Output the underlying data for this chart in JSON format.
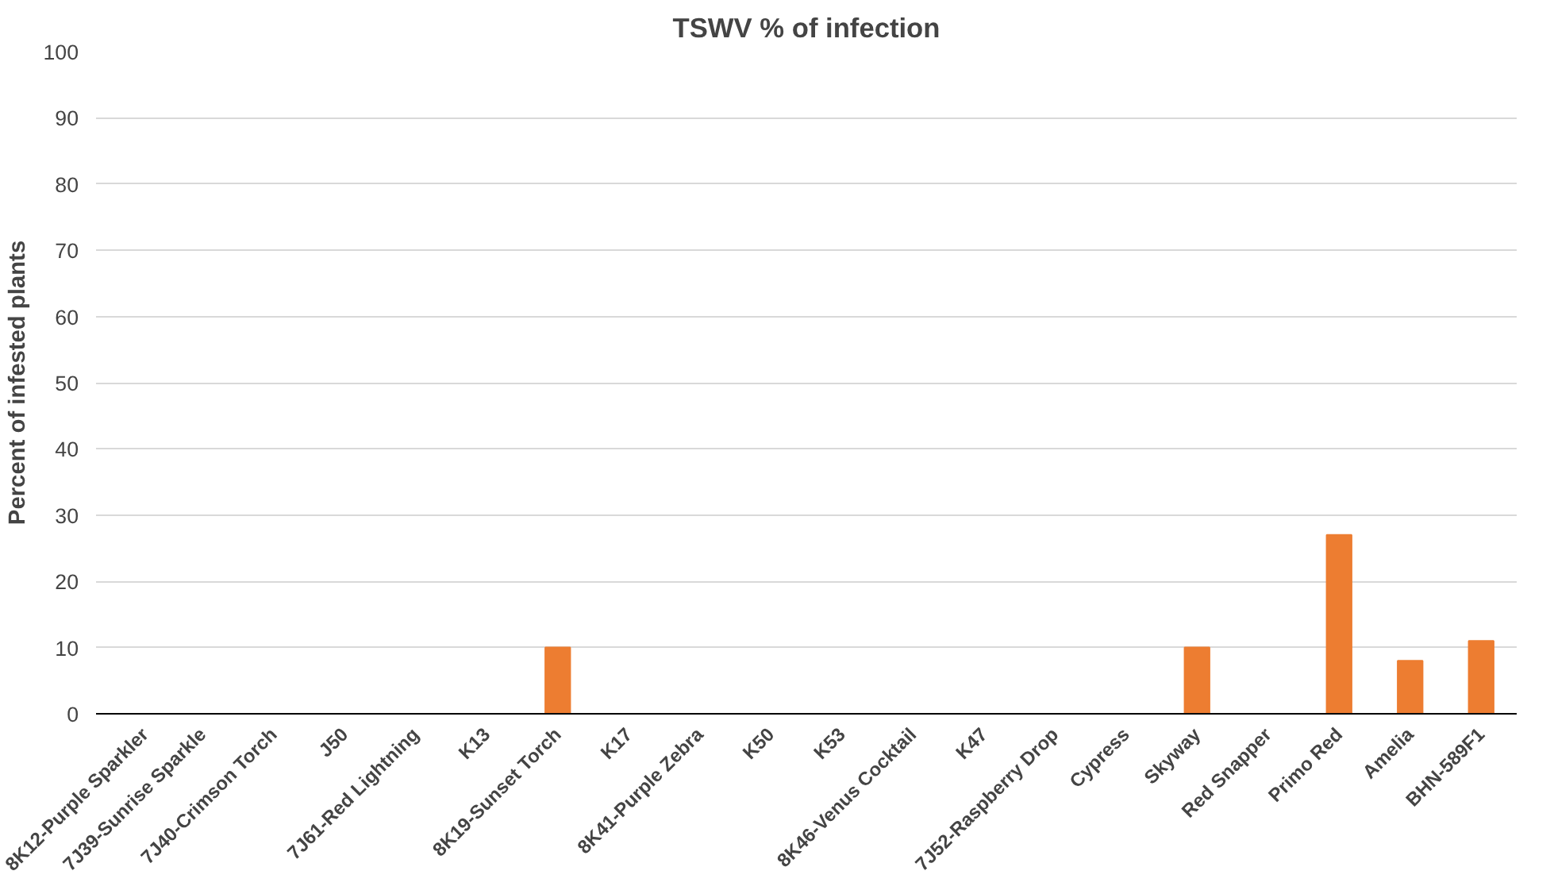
{
  "chart_data": {
    "type": "bar",
    "title": "TSWV % of infection",
    "ylabel": "Percent of infested plants",
    "categories": [
      "8K12-Purple Sparkler",
      "7J39-Sunrise Sparkle",
      "7J40-Crimson Torch",
      "J50",
      "7J61-Red Lightning",
      "K13",
      "8K19-Sunset Torch",
      "K17",
      "8K41-Purple Zebra",
      "K50",
      "K53",
      "8K46-Venus Cocktail",
      "K47",
      "7J52-Raspberry Drop",
      "Cypress",
      "Skyway",
      "Red Snapper",
      "Primo Red",
      "Amelia",
      "BHN-589F1"
    ],
    "values": [
      0,
      0,
      0,
      0,
      0,
      0,
      10,
      0,
      0,
      0,
      0,
      0,
      0,
      0,
      0,
      10,
      0,
      27,
      8,
      11
    ],
    "color": "#ed7d31",
    "ylim": [
      0,
      100
    ],
    "yticks": [
      0,
      10,
      20,
      30,
      40,
      50,
      60,
      70,
      80,
      90,
      100
    ],
    "grid": "y"
  }
}
